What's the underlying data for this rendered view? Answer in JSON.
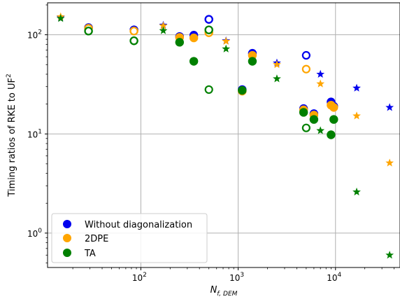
{
  "chart_data": {
    "type": "scatter",
    "title": "",
    "xlabel_base": "N",
    "xlabel_sub": "f, DEM",
    "ylabel_main": "Timing ratios of RKE to UF",
    "ylabel_sup": "2",
    "xscale": "log",
    "yscale": "log",
    "xlim": [
      11,
      46000
    ],
    "ylim": [
      0.45,
      210
    ],
    "grid": true,
    "legend_position": "lower-left",
    "x_ticks": [
      {
        "value": 100,
        "base": "10",
        "exp": "2"
      },
      {
        "value": 1000,
        "base": "10",
        "exp": "3"
      },
      {
        "value": 10000,
        "base": "10",
        "exp": "4"
      }
    ],
    "y_ticks": [
      {
        "value": 1,
        "base": "10",
        "exp": "0"
      },
      {
        "value": 10,
        "base": "10",
        "exp": "1"
      },
      {
        "value": 100,
        "base": "10",
        "exp": "2"
      }
    ],
    "legend": [
      {
        "label": "Without diagonalization",
        "color": "#0000ee"
      },
      {
        "label": "2DPE",
        "color": "#ffa500"
      },
      {
        "label": "TA",
        "color": "#008000"
      }
    ],
    "series": [
      {
        "name": "Without diagonalization",
        "color": "#0000ee",
        "filled_circles": [
          [
            29,
            118
          ],
          [
            85,
            112
          ],
          [
            250,
            96
          ],
          [
            350,
            99
          ],
          [
            500,
            143
          ],
          [
            1100,
            28
          ],
          [
            1400,
            65
          ],
          [
            4700,
            18
          ],
          [
            6000,
            16
          ],
          [
            9000,
            21
          ],
          [
            9600,
            19
          ]
        ],
        "open_circles": [
          [
            29,
            118
          ],
          [
            85,
            112
          ],
          [
            500,
            143
          ],
          [
            5000,
            62
          ]
        ],
        "stars": [
          [
            15,
            150
          ],
          [
            170,
            125
          ],
          [
            750,
            87
          ],
          [
            2500,
            52
          ],
          [
            7000,
            40
          ],
          [
            16500,
            29
          ],
          [
            36000,
            18.5
          ]
        ]
      },
      {
        "name": "2DPE",
        "color": "#ffa500",
        "filled_circles": [
          [
            29,
            116
          ],
          [
            85,
            109
          ],
          [
            250,
            94
          ],
          [
            350,
            93
          ],
          [
            500,
            105
          ],
          [
            1100,
            27
          ],
          [
            1400,
            62
          ],
          [
            4700,
            17.5
          ],
          [
            6000,
            15.5
          ],
          [
            9000,
            19.5
          ],
          [
            9600,
            18.5
          ]
        ],
        "open_circles": [
          [
            29,
            116
          ],
          [
            85,
            109
          ],
          [
            500,
            105
          ],
          [
            5000,
            45
          ]
        ],
        "stars": [
          [
            15,
            152
          ],
          [
            170,
            123
          ],
          [
            750,
            86
          ],
          [
            2500,
            50
          ],
          [
            7000,
            32
          ],
          [
            16500,
            15.2
          ],
          [
            36000,
            5.1
          ]
        ]
      },
      {
        "name": "TA",
        "color": "#008000",
        "filled_circles": [
          [
            29,
            109
          ],
          [
            85,
            87
          ],
          [
            250,
            84
          ],
          [
            350,
            54
          ],
          [
            500,
            112
          ],
          [
            1100,
            27.5
          ],
          [
            1400,
            54
          ],
          [
            4700,
            16.5
          ],
          [
            6000,
            14
          ],
          [
            9000,
            9.8
          ],
          [
            9600,
            14
          ]
        ],
        "open_circles": [
          [
            29,
            109
          ],
          [
            85,
            87
          ],
          [
            500,
            112
          ],
          [
            500,
            28
          ],
          [
            5000,
            11.5
          ]
        ],
        "stars": [
          [
            15,
            146
          ],
          [
            170,
            110
          ],
          [
            750,
            72
          ],
          [
            2500,
            36
          ],
          [
            7000,
            10.8
          ],
          [
            16500,
            2.6
          ],
          [
            36000,
            0.6
          ]
        ]
      }
    ]
  }
}
